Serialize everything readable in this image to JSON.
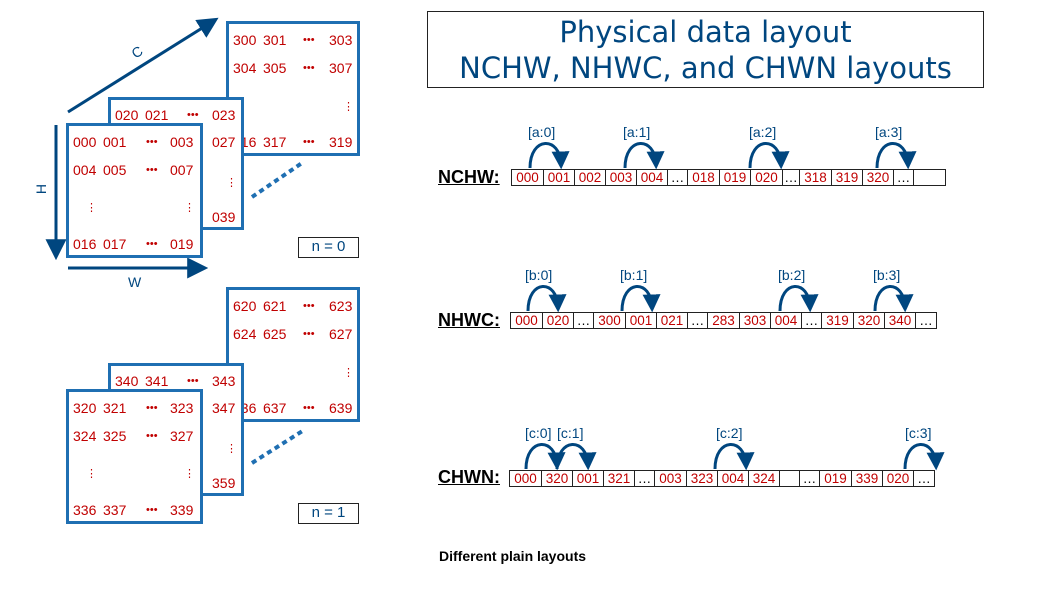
{
  "title": {
    "line1": "Physical data layout",
    "line2": "NCHW, NHWC, and CHWN layouts"
  },
  "tensor": {
    "axes": {
      "c": "C",
      "h": "H",
      "w": "W"
    },
    "n0": {
      "label": "n = 0",
      "back": {
        "r1": [
          "300",
          "301",
          "303"
        ],
        "r2": [
          "304",
          "305",
          "307"
        ],
        "r4": [
          "316",
          "317",
          "319"
        ]
      },
      "mid": {
        "r1": [
          "020",
          "021",
          "023"
        ],
        "r2": "027",
        "r4": "039"
      },
      "front": {
        "r1": [
          "000",
          "001",
          "003"
        ],
        "r2": [
          "004",
          "005",
          "007"
        ],
        "r4": [
          "016",
          "017",
          "019"
        ]
      }
    },
    "n1": {
      "label": "n = 1",
      "back": {
        "r1": [
          "620",
          "621",
          "623"
        ],
        "r2": [
          "624",
          "625",
          "627"
        ],
        "r4": [
          "636",
          "637",
          "639"
        ]
      },
      "mid": {
        "r1": [
          "340",
          "341",
          "343"
        ],
        "r2": "347",
        "r4": "359"
      },
      "front": {
        "r1": [
          "320",
          "321",
          "323"
        ],
        "r2": [
          "324",
          "325",
          "327"
        ],
        "r4": [
          "336",
          "337",
          "339"
        ]
      }
    }
  },
  "layouts": [
    {
      "name": "NCHW:",
      "cells": [
        "000",
        "001",
        "002",
        "003",
        "004",
        "…",
        "018",
        "019",
        "020",
        "…",
        "318",
        "319",
        "320",
        "…",
        ""
      ],
      "pointers": [
        "[a:0]",
        "[a:1]",
        "[a:2]",
        "[a:3]"
      ]
    },
    {
      "name": "NHWC:",
      "cells": [
        "000",
        "020",
        "…",
        "300",
        "001",
        "021",
        "…",
        "283",
        "303",
        "004",
        "…",
        "319",
        "320",
        "340",
        "…"
      ],
      "pointers": [
        "[b:0]",
        "[b:1]",
        "[b:2]",
        "[b:3]"
      ]
    },
    {
      "name": "CHWN:",
      "cells": [
        "000",
        "320",
        "001",
        "321",
        "…",
        "003",
        "323",
        "004",
        "324",
        "",
        "…",
        "019",
        "339",
        "020",
        "…"
      ],
      "pointers": [
        "[c:0]",
        "[c:1]",
        "[c:2]",
        "[c:3]"
      ]
    }
  ],
  "caption": "Different plain layouts",
  "colors": {
    "blue_border": "#1f6fb2",
    "dark_blue": "#00467f",
    "value_red": "#c00000"
  }
}
